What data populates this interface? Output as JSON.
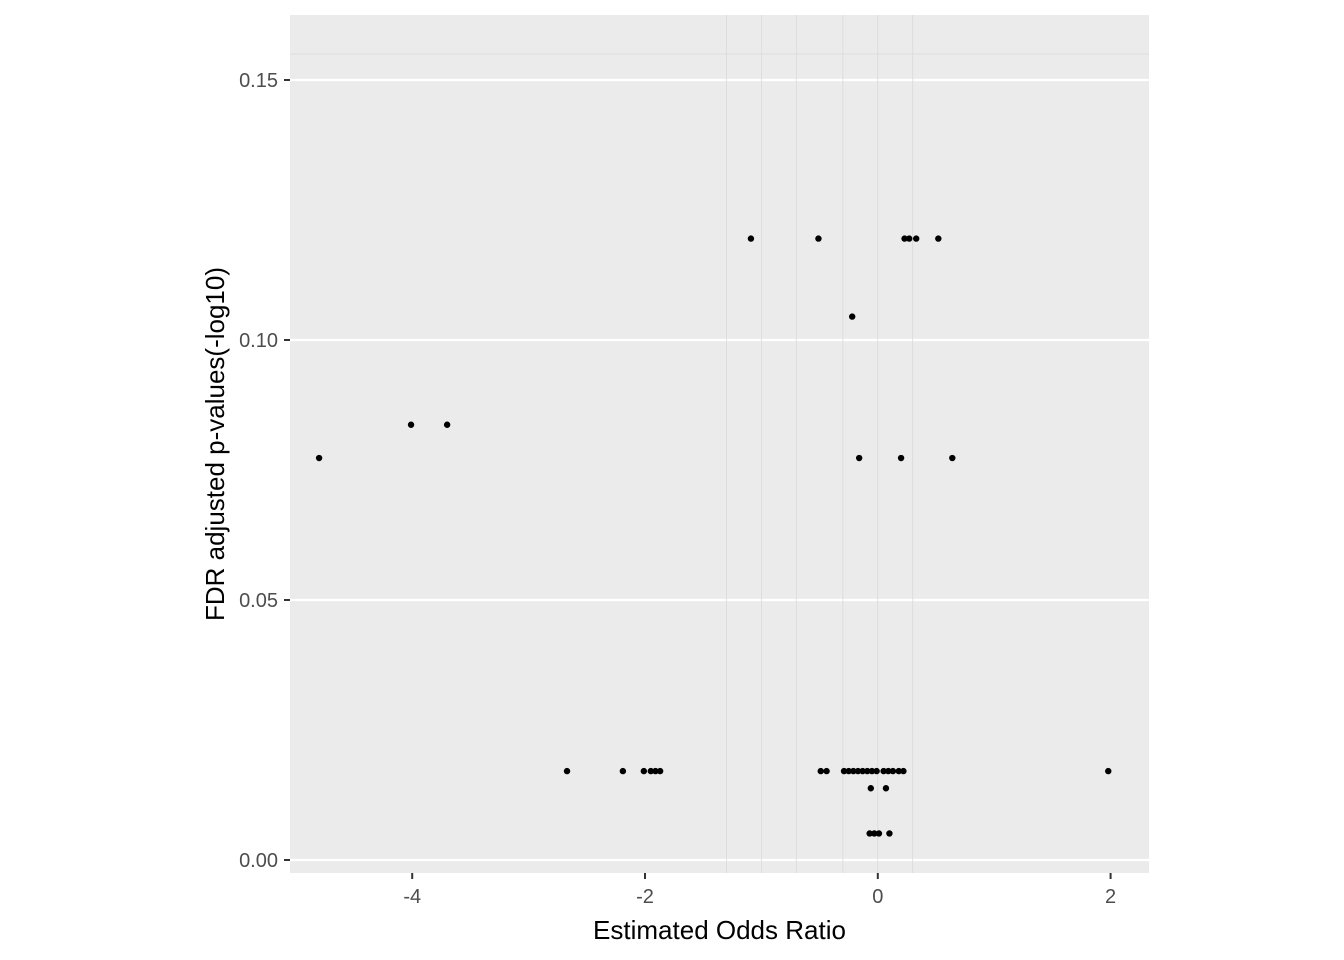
{
  "chart_data": {
    "type": "scatter",
    "title": "",
    "xlabel": "Estimated Odds Ratio",
    "ylabel": "FDR adjusted p-values(-log10)",
    "xlim": [
      -5.05,
      2.33
    ],
    "ylim": [
      -0.0025,
      0.1625
    ],
    "x_ticks": [
      -4,
      -2,
      0,
      2
    ],
    "x_tick_labels": [
      "-4",
      "-2",
      "0",
      "2"
    ],
    "y_ticks": [
      0.0,
      0.05,
      0.1,
      0.15
    ],
    "y_tick_labels": [
      "0.00",
      "0.05",
      "0.10",
      "0.15"
    ],
    "reference_lines_x": [
      -1.3,
      -1.0,
      -0.7,
      -0.3,
      0.0,
      0.3
    ],
    "reference_line_y": 0.155,
    "grid": true,
    "legend": "none",
    "colors": {
      "panel": "#ebebeb",
      "grid": "#ffffff",
      "point": "#000000",
      "ref_line": "#dadada"
    },
    "points": [
      {
        "x": -4.8,
        "y": 0.0773
      },
      {
        "x": -4.01,
        "y": 0.0837
      },
      {
        "x": -3.7,
        "y": 0.0837
      },
      {
        "x": -1.09,
        "y": 0.1195
      },
      {
        "x": -0.51,
        "y": 0.1195
      },
      {
        "x": 0.23,
        "y": 0.1195
      },
      {
        "x": 0.27,
        "y": 0.1195
      },
      {
        "x": 0.33,
        "y": 0.1195
      },
      {
        "x": 0.52,
        "y": 0.1195
      },
      {
        "x": -0.22,
        "y": 0.1045
      },
      {
        "x": -0.16,
        "y": 0.0773
      },
      {
        "x": 0.2,
        "y": 0.0773
      },
      {
        "x": 0.64,
        "y": 0.0773
      },
      {
        "x": -2.67,
        "y": 0.0171
      },
      {
        "x": -2.19,
        "y": 0.0171
      },
      {
        "x": -2.01,
        "y": 0.0171
      },
      {
        "x": -1.95,
        "y": 0.0171
      },
      {
        "x": -1.91,
        "y": 0.0171
      },
      {
        "x": -1.87,
        "y": 0.0171
      },
      {
        "x": -0.49,
        "y": 0.0171
      },
      {
        "x": -0.44,
        "y": 0.0171
      },
      {
        "x": -0.29,
        "y": 0.0171
      },
      {
        "x": -0.25,
        "y": 0.0171
      },
      {
        "x": -0.21,
        "y": 0.0171
      },
      {
        "x": -0.17,
        "y": 0.0171
      },
      {
        "x": -0.13,
        "y": 0.0171
      },
      {
        "x": -0.09,
        "y": 0.0171
      },
      {
        "x": -0.05,
        "y": 0.0171
      },
      {
        "x": -0.01,
        "y": 0.0171
      },
      {
        "x": 0.05,
        "y": 0.0171
      },
      {
        "x": 0.09,
        "y": 0.0171
      },
      {
        "x": 0.13,
        "y": 0.0171
      },
      {
        "x": 0.18,
        "y": 0.0171
      },
      {
        "x": 0.22,
        "y": 0.0171
      },
      {
        "x": 1.98,
        "y": 0.0171
      },
      {
        "x": -0.06,
        "y": 0.0138
      },
      {
        "x": 0.07,
        "y": 0.0138
      },
      {
        "x": -0.07,
        "y": 0.0051
      },
      {
        "x": -0.03,
        "y": 0.0051
      },
      {
        "x": 0.01,
        "y": 0.0051
      },
      {
        "x": 0.1,
        "y": 0.0051
      }
    ]
  }
}
